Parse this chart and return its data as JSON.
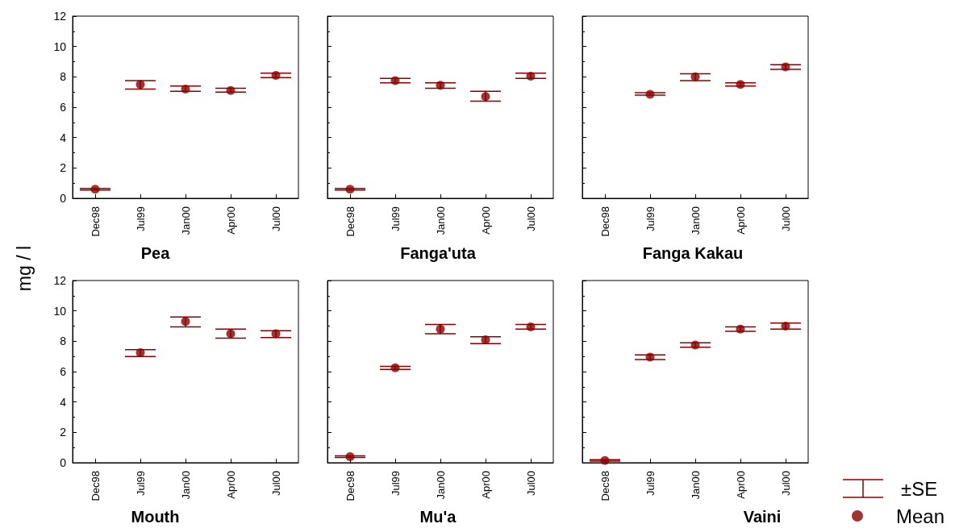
{
  "chart_data": [
    {
      "type": "scatter",
      "title": "Pea",
      "ylabel": "mg / l",
      "categories": [
        "Dec98",
        "Jul99",
        "Jan00",
        "Apr00",
        "Jul00"
      ],
      "ylim": [
        0,
        12
      ],
      "yticks": [
        0,
        2,
        4,
        6,
        8,
        10,
        12
      ],
      "marker": "circle",
      "series": [
        {
          "color": "#8b0000",
          "values": [
            0.6,
            7.5,
            7.2,
            7.1,
            8.1
          ],
          "errors": [
            [
              0.55,
              0.65
            ],
            [
              7.2,
              7.75
            ],
            [
              7.05,
              7.4
            ],
            [
              7.0,
              7.25
            ],
            [
              7.95,
              8.25
            ]
          ]
        }
      ]
    },
    {
      "type": "scatter",
      "title": "Fanga'uta",
      "categories": [
        "Dec98",
        "Jul99",
        "Jan00",
        "Apr00",
        "Jul00"
      ],
      "ylim": [
        0,
        12
      ],
      "yticks": [
        0,
        2,
        4,
        6,
        8,
        10,
        12
      ],
      "tick_labels": "x",
      "marker": "circle",
      "series": [
        {
          "color": "#8b0000",
          "values": [
            0.6,
            7.75,
            7.45,
            6.7,
            8.05
          ],
          "errors": [
            [
              0.55,
              0.65
            ],
            [
              7.6,
              7.9
            ],
            [
              7.25,
              7.6
            ],
            [
              6.4,
              7.05
            ],
            [
              7.9,
              8.25
            ]
          ]
        }
      ]
    },
    {
      "type": "scatter",
      "title": "Fanga Kakau",
      "categories": [
        "Dec98",
        "Jul99",
        "Jan00",
        "Apr00",
        "Jul00"
      ],
      "ylim": [
        0,
        12
      ],
      "yticks": [
        0,
        2,
        4,
        6,
        8,
        10,
        12
      ],
      "tick_labels": "x",
      "marker": "circle",
      "series": [
        {
          "color": "#8b0000",
          "values": [
            null,
            6.85,
            8.0,
            7.5,
            8.65
          ],
          "errors": [
            null,
            [
              6.8,
              6.95
            ],
            [
              7.75,
              8.2
            ],
            [
              7.4,
              7.6
            ],
            [
              8.5,
              8.8
            ]
          ]
        }
      ]
    },
    {
      "type": "scatter",
      "title": "Mouth",
      "categories": [
        "Dec98",
        "Jul99",
        "Jan00",
        "Apr00",
        "Jul00"
      ],
      "ylim": [
        0,
        12
      ],
      "yticks": [
        0,
        2,
        4,
        6,
        8,
        10,
        12
      ],
      "marker": "circle",
      "series": [
        {
          "color": "#8b0000",
          "values": [
            null,
            7.25,
            9.3,
            8.5,
            8.5
          ],
          "errors": [
            null,
            [
              7.0,
              7.45
            ],
            [
              8.95,
              9.6
            ],
            [
              8.2,
              8.8
            ],
            [
              8.25,
              8.7
            ]
          ]
        }
      ]
    },
    {
      "type": "scatter",
      "title": "Mu'a",
      "categories": [
        "Dec98",
        "Jul99",
        "Jan00",
        "Apr00",
        "Jul00"
      ],
      "ylim": [
        0,
        12
      ],
      "yticks": [
        0,
        2,
        4,
        6,
        8,
        10,
        12
      ],
      "tick_labels": "x",
      "marker": "circle",
      "series": [
        {
          "color": "#8b0000",
          "values": [
            0.4,
            6.25,
            8.8,
            8.1,
            8.95
          ],
          "errors": [
            [
              0.35,
              0.45
            ],
            [
              6.15,
              6.35
            ],
            [
              8.5,
              9.1
            ],
            [
              7.85,
              8.3
            ],
            [
              8.8,
              9.1
            ]
          ]
        }
      ]
    },
    {
      "type": "scatter",
      "title": "Vaini",
      "categories": [
        "Dec98",
        "Jul99",
        "Jan00",
        "Apr00",
        "Jul00"
      ],
      "ylim": [
        0,
        12
      ],
      "yticks": [
        0,
        2,
        4,
        6,
        8,
        10,
        12
      ],
      "tick_labels": "x",
      "marker": "circle",
      "legend": "bottom right",
      "annotations": [
        "±SE"
      ],
      "series": [
        {
          "name": "Mean",
          "color": "#8b0000",
          "values": [
            0.15,
            6.95,
            7.75,
            8.8,
            9.0
          ],
          "errors": [
            [
              0.1,
              0.2
            ],
            [
              6.8,
              7.1
            ],
            [
              7.6,
              7.9
            ],
            [
              8.65,
              8.95
            ],
            [
              8.8,
              9.2
            ]
          ]
        }
      ]
    }
  ]
}
